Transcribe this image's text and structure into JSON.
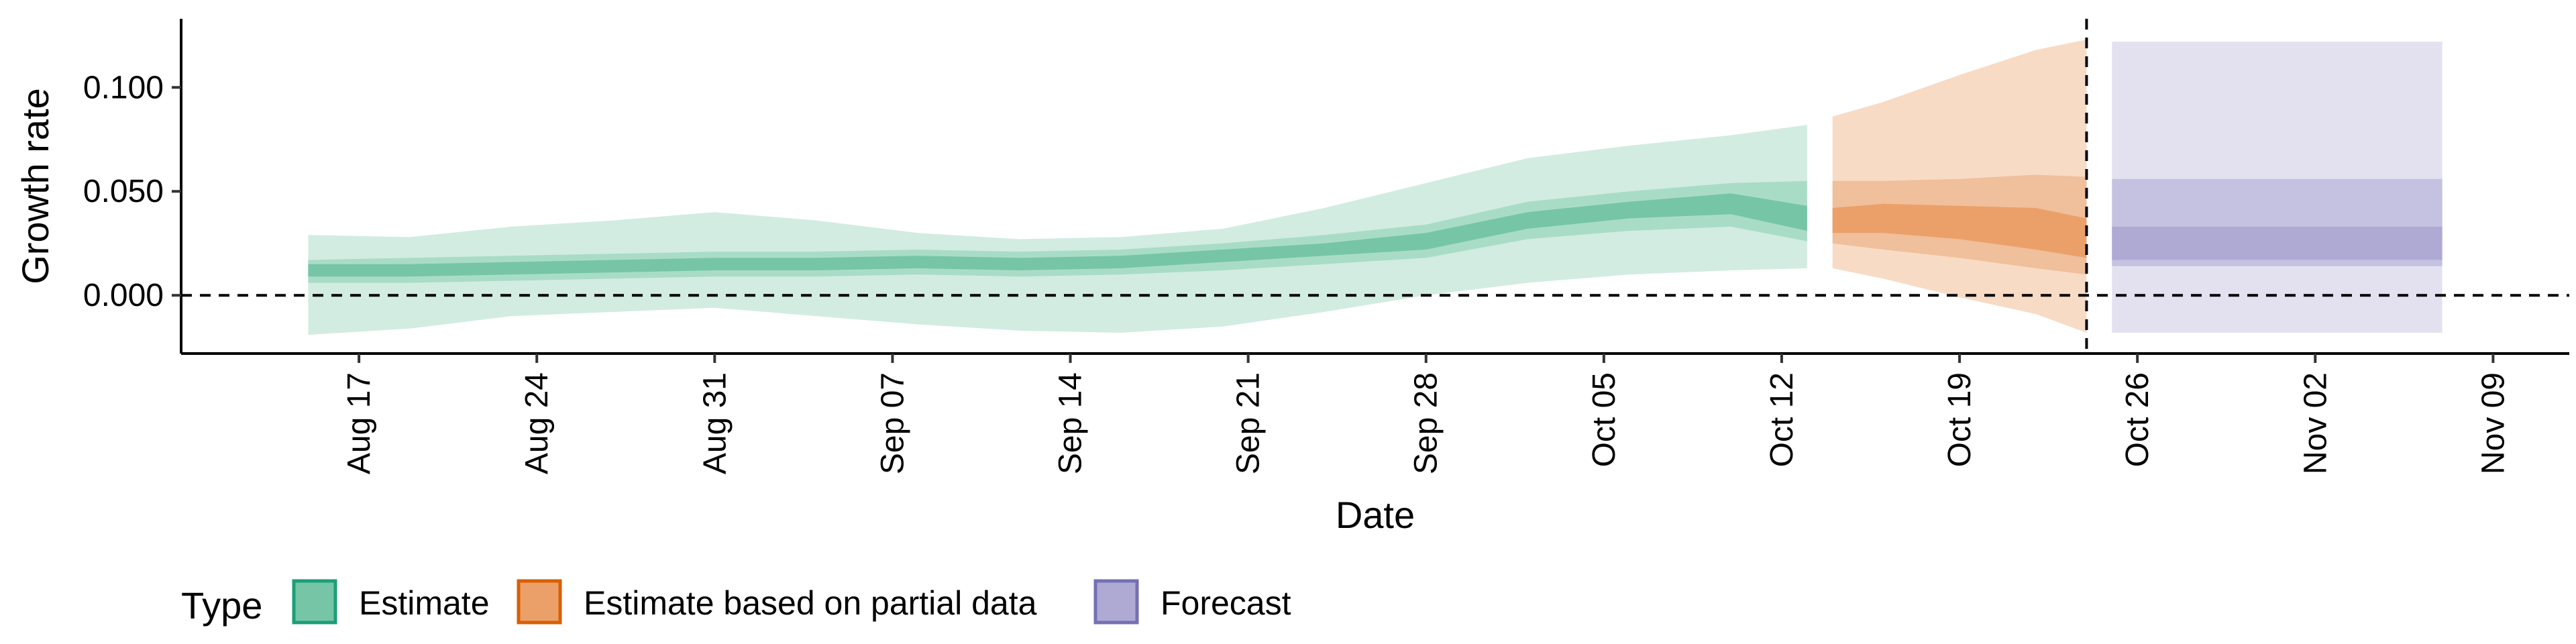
{
  "chart_data": {
    "type": "area",
    "xlabel": "Date",
    "ylabel": "Growth rate",
    "x_range": [
      "2021-08-10",
      "2021-11-12"
    ],
    "ylim": [
      -0.028,
      0.133
    ],
    "y_ticks": [
      0.0,
      0.05,
      0.1
    ],
    "y_tick_labels": [
      "0.000",
      "0.050",
      "0.100"
    ],
    "x_ticks": [
      "2021-08-17",
      "2021-08-24",
      "2021-08-31",
      "2021-09-07",
      "2021-09-14",
      "2021-09-21",
      "2021-09-28",
      "2021-10-05",
      "2021-10-12",
      "2021-10-19",
      "2021-10-26",
      "2021-11-02",
      "2021-11-09"
    ],
    "x_tick_labels": [
      "Aug 17",
      "Aug 24",
      "Aug 31",
      "Sep 07",
      "Sep 14",
      "Sep 21",
      "Sep 28",
      "Oct 05",
      "Oct 12",
      "Oct 19",
      "Oct 26",
      "Nov 02",
      "Nov 09"
    ],
    "hline_y": 0.0,
    "forecast_start_line": "2021-10-24",
    "grid": false,
    "legend": {
      "title": "Type",
      "position": "bottom",
      "items": [
        {
          "label": "Estimate",
          "fill": "#76c5a7",
          "stroke": "#1b9e77"
        },
        {
          "label": "Estimate based on partial data",
          "fill": "#eba06a",
          "stroke": "#d95f02"
        },
        {
          "label": "Forecast",
          "fill": "#aeaad4",
          "stroke": "#7570b3"
        }
      ]
    },
    "series": [
      {
        "name": "Estimate",
        "colors": {
          "outer": "#d2ece1",
          "mid": "#a9dcc7",
          "inner": "#76c5a7"
        },
        "points": [
          {
            "date": "2021-08-15",
            "median": 0.012,
            "lo90": -0.019,
            "hi90": 0.029,
            "lo50": 0.006,
            "hi50": 0.017,
            "lo20": 0.009,
            "hi20": 0.015
          },
          {
            "date": "2021-08-19",
            "median": 0.012,
            "lo90": -0.016,
            "hi90": 0.028,
            "lo50": 0.006,
            "hi50": 0.018,
            "lo20": 0.009,
            "hi20": 0.015
          },
          {
            "date": "2021-08-23",
            "median": 0.013,
            "lo90": -0.01,
            "hi90": 0.033,
            "lo50": 0.007,
            "hi50": 0.019,
            "lo20": 0.01,
            "hi20": 0.016
          },
          {
            "date": "2021-08-27",
            "median": 0.014,
            "lo90": -0.008,
            "hi90": 0.036,
            "lo50": 0.008,
            "hi50": 0.02,
            "lo20": 0.011,
            "hi20": 0.017
          },
          {
            "date": "2021-08-31",
            "median": 0.015,
            "lo90": -0.006,
            "hi90": 0.04,
            "lo50": 0.009,
            "hi50": 0.021,
            "lo20": 0.012,
            "hi20": 0.018
          },
          {
            "date": "2021-09-04",
            "median": 0.015,
            "lo90": -0.01,
            "hi90": 0.036,
            "lo50": 0.009,
            "hi50": 0.021,
            "lo20": 0.012,
            "hi20": 0.018
          },
          {
            "date": "2021-09-08",
            "median": 0.016,
            "lo90": -0.014,
            "hi90": 0.03,
            "lo50": 0.01,
            "hi50": 0.022,
            "lo20": 0.013,
            "hi20": 0.019
          },
          {
            "date": "2021-09-12",
            "median": 0.015,
            "lo90": -0.017,
            "hi90": 0.027,
            "lo50": 0.009,
            "hi50": 0.021,
            "lo20": 0.012,
            "hi20": 0.018
          },
          {
            "date": "2021-09-16",
            "median": 0.016,
            "lo90": -0.018,
            "hi90": 0.028,
            "lo50": 0.01,
            "hi50": 0.022,
            "lo20": 0.013,
            "hi20": 0.019
          },
          {
            "date": "2021-09-20",
            "median": 0.019,
            "lo90": -0.015,
            "hi90": 0.032,
            "lo50": 0.012,
            "hi50": 0.025,
            "lo20": 0.016,
            "hi20": 0.022
          },
          {
            "date": "2021-09-24",
            "median": 0.022,
            "lo90": -0.008,
            "hi90": 0.042,
            "lo50": 0.015,
            "hi50": 0.029,
            "lo20": 0.019,
            "hi20": 0.025
          },
          {
            "date": "2021-09-28",
            "median": 0.026,
            "lo90": 0.0,
            "hi90": 0.054,
            "lo50": 0.018,
            "hi50": 0.034,
            "lo20": 0.022,
            "hi20": 0.03
          },
          {
            "date": "2021-10-02",
            "median": 0.036,
            "lo90": 0.006,
            "hi90": 0.066,
            "lo50": 0.027,
            "hi50": 0.045,
            "lo20": 0.032,
            "hi20": 0.04
          },
          {
            "date": "2021-10-06",
            "median": 0.041,
            "lo90": 0.01,
            "hi90": 0.072,
            "lo50": 0.031,
            "hi50": 0.05,
            "lo20": 0.037,
            "hi20": 0.045
          },
          {
            "date": "2021-10-10",
            "median": 0.044,
            "lo90": 0.012,
            "hi90": 0.077,
            "lo50": 0.033,
            "hi50": 0.054,
            "lo20": 0.039,
            "hi20": 0.049
          },
          {
            "date": "2021-10-13",
            "median": 0.036,
            "lo90": 0.013,
            "hi90": 0.082,
            "lo50": 0.026,
            "hi50": 0.055,
            "lo20": 0.031,
            "hi20": 0.043
          }
        ]
      },
      {
        "name": "Estimate based on partial data",
        "colors": {
          "outer": "#f7dbc5",
          "mid": "#f0bf9b",
          "inner": "#eba06a"
        },
        "points": [
          {
            "date": "2021-10-14",
            "median": 0.035,
            "lo90": 0.013,
            "hi90": 0.086,
            "lo50": 0.025,
            "hi50": 0.055,
            "lo20": 0.03,
            "hi20": 0.042
          },
          {
            "date": "2021-10-16",
            "median": 0.037,
            "lo90": 0.008,
            "hi90": 0.093,
            "lo50": 0.022,
            "hi50": 0.055,
            "lo20": 0.03,
            "hi20": 0.044
          },
          {
            "date": "2021-10-19",
            "median": 0.035,
            "lo90": -0.001,
            "hi90": 0.106,
            "lo50": 0.018,
            "hi50": 0.056,
            "lo20": 0.027,
            "hi20": 0.043
          },
          {
            "date": "2021-10-22",
            "median": 0.032,
            "lo90": -0.009,
            "hi90": 0.118,
            "lo50": 0.013,
            "hi50": 0.058,
            "lo20": 0.022,
            "hi20": 0.042
          },
          {
            "date": "2021-10-24",
            "median": 0.025,
            "lo90": -0.018,
            "hi90": 0.123,
            "lo50": 0.01,
            "hi50": 0.057,
            "lo20": 0.018,
            "hi20": 0.037
          }
        ]
      },
      {
        "name": "Forecast",
        "colors": {
          "outer": "#e3e1f0",
          "mid": "#c5c2e1",
          "inner": "#aeaad4"
        },
        "points": [
          {
            "date": "2021-10-25",
            "median": 0.025,
            "lo90": -0.018,
            "hi90": 0.122,
            "lo50": 0.014,
            "hi50": 0.056,
            "lo20": 0.017,
            "hi20": 0.033
          },
          {
            "date": "2021-11-07",
            "median": 0.025,
            "lo90": -0.018,
            "hi90": 0.122,
            "lo50": 0.014,
            "hi50": 0.056,
            "lo20": 0.017,
            "hi20": 0.033
          }
        ]
      }
    ]
  }
}
